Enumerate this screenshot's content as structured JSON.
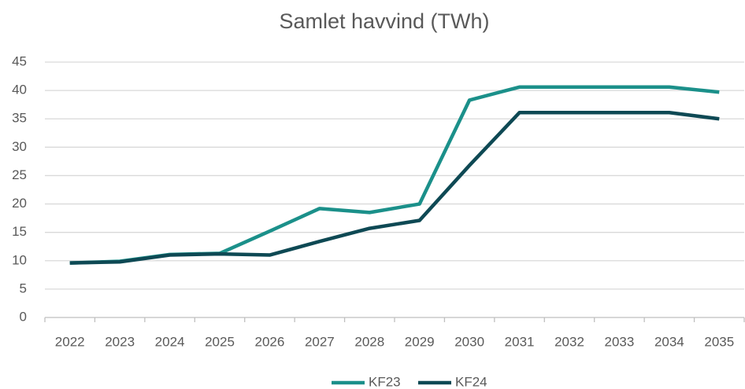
{
  "chart_data": {
    "type": "line",
    "title": "Samlet havvind (TWh)",
    "categories": [
      "2022",
      "2023",
      "2024",
      "2025",
      "2026",
      "2027",
      "2028",
      "2029",
      "2030",
      "2031",
      "2032",
      "2033",
      "2034",
      "2035"
    ],
    "series": [
      {
        "name": "KF23",
        "color": "#1b908a",
        "values": [
          9.6,
          9.9,
          11.1,
          11.3,
          15.2,
          19.2,
          18.5,
          20.0,
          38.3,
          40.6,
          40.6,
          40.6,
          40.6,
          39.7
        ]
      },
      {
        "name": "KF24",
        "color": "#0e4954",
        "values": [
          9.6,
          9.8,
          11.0,
          11.2,
          11.0,
          13.4,
          15.7,
          17.1,
          26.8,
          36.1,
          36.1,
          36.1,
          36.1,
          35.0
        ]
      }
    ],
    "ylim": [
      0,
      45
    ],
    "yticks": [
      0,
      5,
      10,
      15,
      20,
      25,
      30,
      35,
      40,
      45
    ],
    "grid": true,
    "legend": "bottom"
  }
}
